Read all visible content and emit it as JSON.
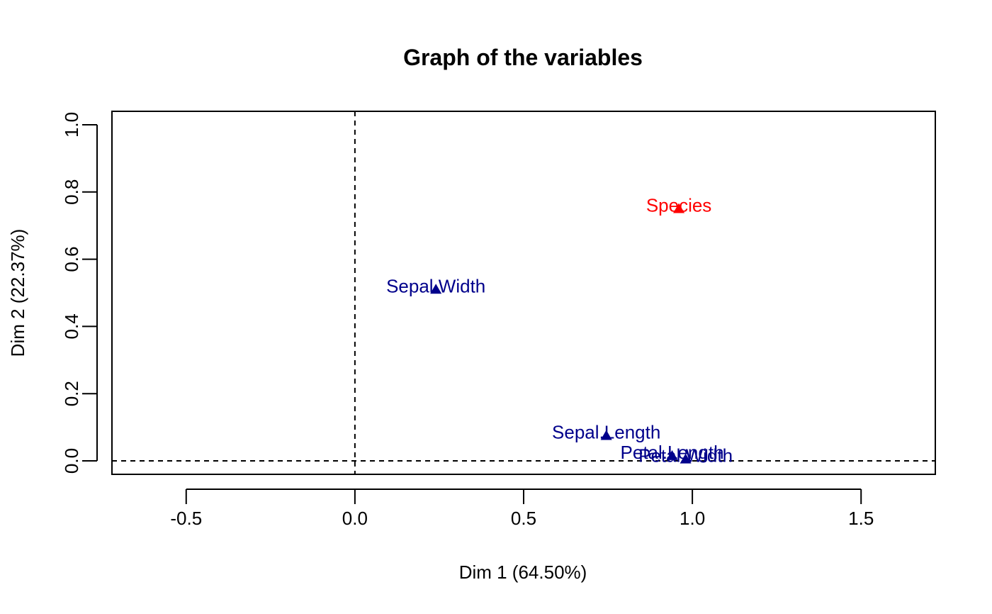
{
  "chart_data": {
    "type": "scatter",
    "title": "Graph of the variables",
    "xlabel": "Dim 1 (64.50%)",
    "ylabel": "Dim 2 (22.37%)",
    "xlim": [
      -0.72,
      1.72
    ],
    "ylim": [
      -0.04,
      1.04
    ],
    "x_ticks": [
      -0.5,
      0.0,
      0.5,
      1.0,
      1.5
    ],
    "x_tick_labels": [
      "-0.5",
      "0.0",
      "0.5",
      "1.0",
      "1.5"
    ],
    "y_ticks": [
      0.0,
      0.2,
      0.4,
      0.6,
      0.8,
      1.0
    ],
    "y_tick_labels": [
      "0.0",
      "0.2",
      "0.4",
      "0.6",
      "0.8",
      "1.0"
    ],
    "reference_lines": {
      "x": 0,
      "y": 0,
      "style": "dashed"
    },
    "grid": false,
    "marker": "triangle",
    "colors": {
      "active": "#00008B",
      "supplementary": "#FF0000",
      "axis": "#000000"
    },
    "points": [
      {
        "label": "Sepal.Width",
        "x": 0.24,
        "y": 0.51,
        "color": "#00008B"
      },
      {
        "label": "Species",
        "x": 0.96,
        "y": 0.75,
        "color": "#FF0000"
      },
      {
        "label": "Sepal.Length",
        "x": 0.745,
        "y": 0.075,
        "color": "#00008B"
      },
      {
        "label": "Petal.Length",
        "x": 0.94,
        "y": 0.015,
        "color": "#00008B"
      },
      {
        "label": "Petal.Width",
        "x": 0.98,
        "y": 0.005,
        "color": "#00008B"
      }
    ]
  }
}
